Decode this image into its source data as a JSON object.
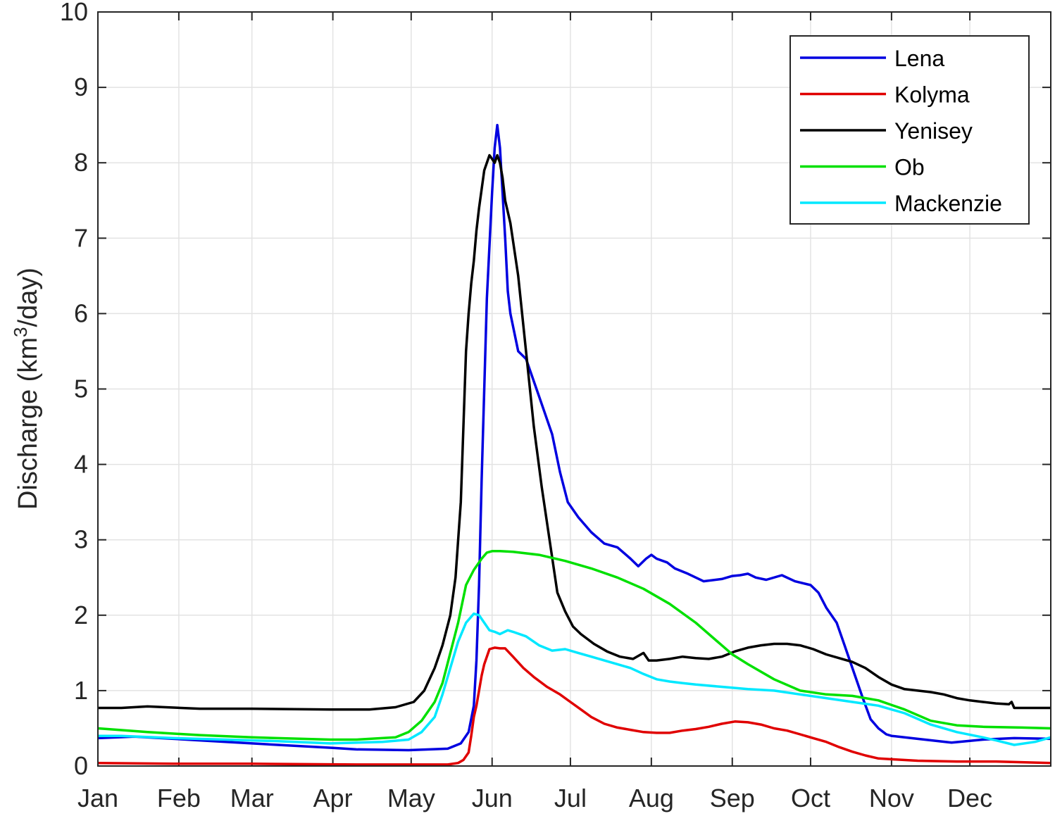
{
  "chart_data": {
    "type": "line",
    "title": "",
    "xlabel": "",
    "ylabel": "Discharge (km",
    "ylabel_sup": "3",
    "ylabel_tail": "/day)",
    "ylim": [
      0,
      10
    ],
    "yticks": [
      0,
      1,
      2,
      3,
      4,
      5,
      6,
      7,
      8,
      9,
      10
    ],
    "xlim": [
      1,
      366
    ],
    "xtick_days": [
      1,
      32,
      60,
      91,
      121,
      152,
      182,
      213,
      244,
      274,
      305,
      335
    ],
    "xtick_labels": [
      "Jan",
      "Feb",
      "Mar",
      "Apr",
      "May",
      "Jun",
      "Jul",
      "Aug",
      "Sep",
      "Oct",
      "Nov",
      "Dec"
    ],
    "grid": true,
    "legend_position": "top-right",
    "x_unit": "day of year",
    "series": [
      {
        "name": "Lena",
        "color": "#0000e0",
        "x": [
          1,
          15,
          40,
          70,
          91,
          100,
          120,
          135,
          140,
          143,
          145,
          146,
          147,
          148,
          150,
          152,
          153,
          154,
          155,
          156,
          157,
          158,
          159,
          162,
          165,
          170,
          175,
          178,
          181,
          185,
          190,
          195,
          200,
          205,
          208,
          211,
          213,
          215,
          219,
          222,
          227,
          233,
          240,
          244,
          247,
          250,
          253,
          257,
          263,
          268,
          274,
          277,
          280,
          284,
          287,
          291,
          294,
          297,
          300,
          303,
          305,
          315,
          328,
          340,
          352,
          366
        ],
        "y": [
          0.37,
          0.39,
          0.34,
          0.28,
          0.24,
          0.22,
          0.21,
          0.23,
          0.3,
          0.45,
          0.8,
          1.4,
          2.4,
          3.8,
          6.2,
          7.6,
          8.2,
          8.5,
          8.2,
          7.6,
          7.0,
          6.3,
          6.0,
          5.5,
          5.4,
          4.9,
          4.4,
          3.9,
          3.5,
          3.3,
          3.1,
          2.95,
          2.9,
          2.75,
          2.65,
          2.75,
          2.8,
          2.75,
          2.7,
          2.62,
          2.55,
          2.45,
          2.48,
          2.52,
          2.53,
          2.55,
          2.5,
          2.47,
          2.53,
          2.45,
          2.4,
          2.3,
          2.1,
          1.9,
          1.6,
          1.2,
          0.9,
          0.62,
          0.5,
          0.42,
          0.4,
          0.36,
          0.31,
          0.35,
          0.37,
          0.36
        ]
      },
      {
        "name": "Kolyma",
        "color": "#e00000",
        "x": [
          1,
          30,
          60,
          100,
          135,
          139,
          141,
          143,
          144,
          145,
          146,
          147,
          148,
          149,
          151,
          153,
          155,
          157,
          160,
          164,
          168,
          173,
          178,
          182,
          186,
          190,
          195,
          200,
          205,
          210,
          215,
          220,
          225,
          230,
          235,
          240,
          245,
          250,
          255,
          260,
          265,
          270,
          275,
          280,
          285,
          290,
          295,
          300,
          305,
          315,
          330,
          345,
          366
        ],
        "y": [
          0.04,
          0.03,
          0.03,
          0.02,
          0.02,
          0.04,
          0.08,
          0.18,
          0.4,
          0.65,
          0.8,
          1.0,
          1.2,
          1.35,
          1.55,
          1.57,
          1.56,
          1.56,
          1.45,
          1.3,
          1.18,
          1.05,
          0.95,
          0.85,
          0.75,
          0.65,
          0.56,
          0.51,
          0.48,
          0.45,
          0.44,
          0.44,
          0.47,
          0.49,
          0.52,
          0.56,
          0.59,
          0.58,
          0.55,
          0.5,
          0.47,
          0.42,
          0.37,
          0.32,
          0.25,
          0.19,
          0.14,
          0.1,
          0.09,
          0.07,
          0.06,
          0.06,
          0.04
        ]
      },
      {
        "name": "Yenisey",
        "color": "#000000",
        "x": [
          1,
          10,
          20,
          40,
          60,
          90,
          105,
          115,
          122,
          126,
          130,
          133,
          136,
          138,
          140,
          141,
          142,
          143,
          144,
          145,
          146,
          147,
          149,
          151,
          152,
          153,
          154,
          155,
          156,
          157,
          159,
          162,
          165,
          168,
          171,
          174,
          177,
          180,
          183,
          186,
          191,
          196,
          201,
          206,
          210,
          211,
          212,
          215,
          220,
          225,
          230,
          235,
          240,
          245,
          250,
          255,
          260,
          265,
          270,
          275,
          280,
          285,
          290,
          295,
          300,
          305,
          310,
          315,
          320,
          325,
          330,
          335,
          340,
          345,
          350,
          351,
          352,
          360,
          366
        ],
        "y": [
          0.77,
          0.77,
          0.79,
          0.76,
          0.76,
          0.75,
          0.75,
          0.78,
          0.85,
          1.0,
          1.3,
          1.6,
          2.0,
          2.5,
          3.5,
          4.5,
          5.5,
          6.0,
          6.4,
          6.7,
          7.1,
          7.4,
          7.9,
          8.1,
          8.05,
          8.0,
          8.1,
          8.0,
          7.8,
          7.5,
          7.2,
          6.5,
          5.5,
          4.5,
          3.7,
          3.0,
          2.3,
          2.05,
          1.85,
          1.75,
          1.62,
          1.52,
          1.45,
          1.42,
          1.5,
          1.45,
          1.4,
          1.4,
          1.42,
          1.45,
          1.43,
          1.42,
          1.45,
          1.52,
          1.57,
          1.6,
          1.62,
          1.62,
          1.6,
          1.55,
          1.48,
          1.43,
          1.38,
          1.3,
          1.18,
          1.08,
          1.02,
          1.0,
          0.98,
          0.95,
          0.9,
          0.87,
          0.85,
          0.83,
          0.82,
          0.85,
          0.77,
          0.77,
          0.77
        ]
      },
      {
        "name": "Ob",
        "color": "#00e000",
        "x": [
          1,
          20,
          40,
          60,
          90,
          100,
          115,
          120,
          125,
          130,
          133,
          136,
          139,
          142,
          145,
          148,
          150,
          152,
          155,
          160,
          170,
          180,
          190,
          200,
          210,
          220,
          230,
          240,
          244,
          250,
          260,
          270,
          280,
          290,
          300,
          310,
          320,
          330,
          340,
          355,
          366
        ],
        "y": [
          0.5,
          0.45,
          0.41,
          0.38,
          0.35,
          0.35,
          0.38,
          0.45,
          0.6,
          0.85,
          1.1,
          1.5,
          1.9,
          2.4,
          2.6,
          2.75,
          2.83,
          2.85,
          2.85,
          2.84,
          2.8,
          2.72,
          2.62,
          2.5,
          2.35,
          2.15,
          1.9,
          1.6,
          1.48,
          1.35,
          1.15,
          1.0,
          0.95,
          0.93,
          0.87,
          0.75,
          0.6,
          0.54,
          0.52,
          0.51,
          0.5
        ]
      },
      {
        "name": "Mackenzie",
        "color": "#00e8ff",
        "x": [
          1,
          10,
          30,
          50,
          70,
          90,
          110,
          120,
          125,
          130,
          133,
          136,
          139,
          142,
          145,
          147,
          149,
          151,
          153,
          155,
          158,
          160,
          165,
          170,
          175,
          180,
          185,
          190,
          195,
          200,
          205,
          210,
          215,
          220,
          225,
          230,
          240,
          250,
          260,
          270,
          280,
          290,
          300,
          310,
          320,
          330,
          340,
          345,
          352,
          360,
          366
        ],
        "y": [
          0.4,
          0.4,
          0.37,
          0.35,
          0.33,
          0.3,
          0.32,
          0.35,
          0.45,
          0.65,
          0.95,
          1.3,
          1.65,
          1.9,
          2.02,
          2.0,
          1.9,
          1.8,
          1.78,
          1.75,
          1.8,
          1.78,
          1.72,
          1.6,
          1.53,
          1.55,
          1.5,
          1.45,
          1.4,
          1.35,
          1.3,
          1.22,
          1.15,
          1.12,
          1.1,
          1.08,
          1.05,
          1.02,
          1.0,
          0.95,
          0.9,
          0.85,
          0.8,
          0.7,
          0.55,
          0.45,
          0.38,
          0.34,
          0.28,
          0.32,
          0.38
        ]
      }
    ]
  }
}
